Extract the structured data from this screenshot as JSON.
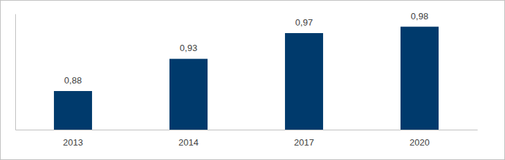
{
  "chart_data": {
    "type": "bar",
    "categories": [
      "2013",
      "2014",
      "2017",
      "2020"
    ],
    "values": [
      0.88,
      0.93,
      0.97,
      0.98
    ],
    "value_labels": [
      "0,88",
      "0,93",
      "0,97",
      "0,98"
    ],
    "color": "#003a6c",
    "ylim": [
      0.82,
      1.0
    ],
    "data_labels": true,
    "tick_labels": "x",
    "grid": false
  }
}
